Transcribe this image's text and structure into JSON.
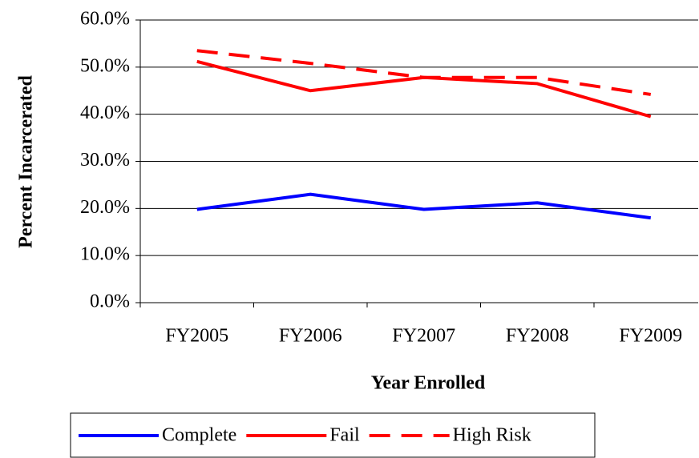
{
  "chart_data": {
    "type": "line",
    "x_label": "Year Enrolled",
    "y_label": "Percent Incarcerated",
    "categories": [
      "FY2005",
      "FY2006",
      "FY2007",
      "FY2008",
      "FY2009"
    ],
    "series": [
      {
        "name": "Complete",
        "color": "#0000ff",
        "dash": false,
        "values": [
          19.8,
          23.0,
          19.8,
          21.2,
          18.0
        ]
      },
      {
        "name": "Fail",
        "color": "#ff0000",
        "dash": false,
        "values": [
          51.2,
          45.0,
          47.8,
          46.5,
          39.5
        ]
      },
      {
        "name": "High Risk",
        "color": "#ff0000",
        "dash": true,
        "values": [
          53.5,
          50.8,
          47.8,
          47.8,
          44.2
        ]
      }
    ],
    "ylim": [
      0,
      60
    ],
    "yticks": [
      {
        "value": 0,
        "label": "0.0%"
      },
      {
        "value": 10,
        "label": "10.0%"
      },
      {
        "value": 20,
        "label": "20.0%"
      },
      {
        "value": 30,
        "label": "30.0%"
      },
      {
        "value": 40,
        "label": "40.0%"
      },
      {
        "value": 50,
        "label": "50.0%"
      },
      {
        "value": 60,
        "label": "60.0%"
      }
    ],
    "grid": true,
    "legend": "bottom"
  }
}
